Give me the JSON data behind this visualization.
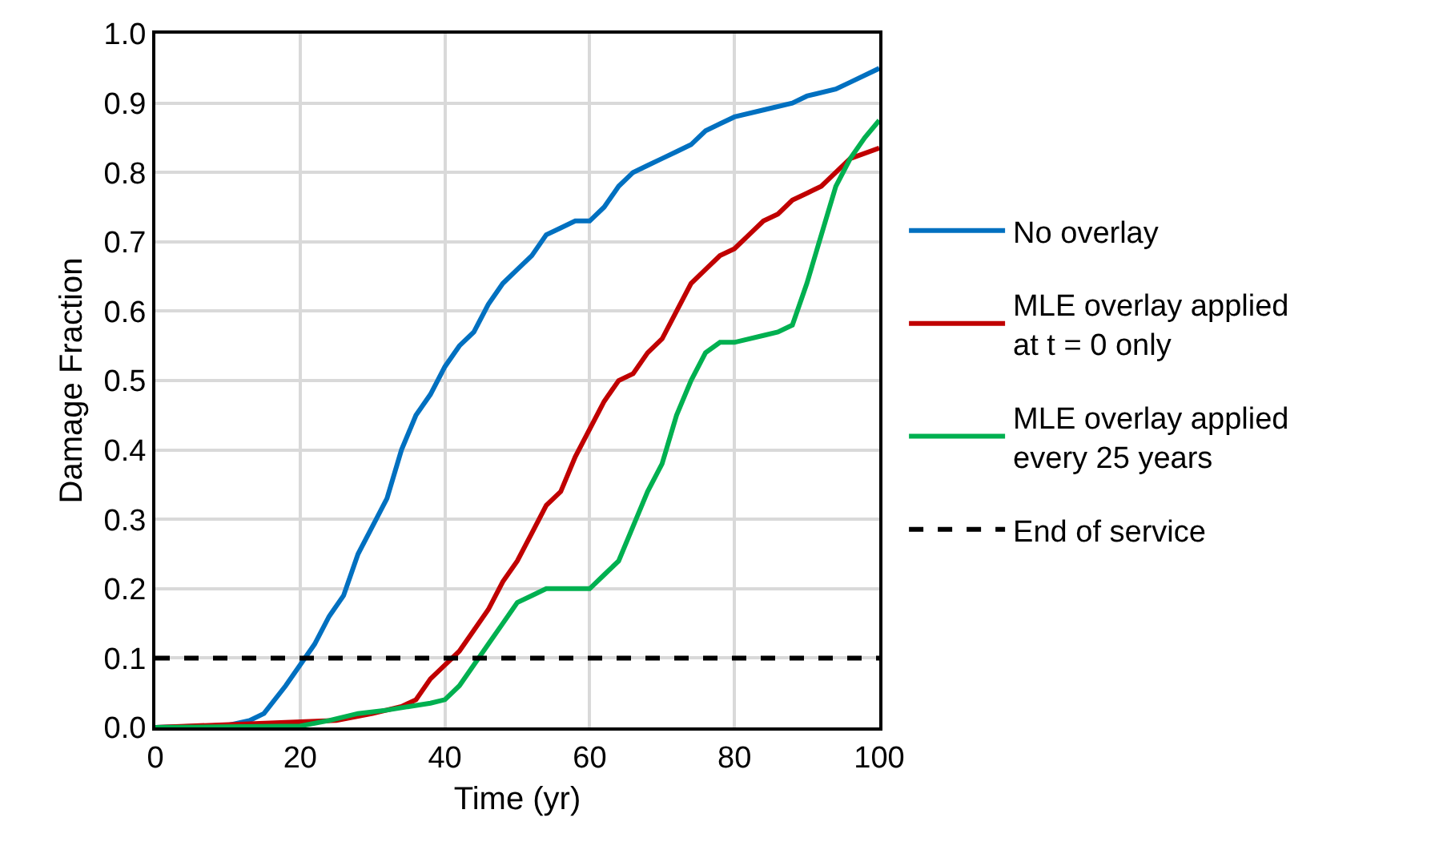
{
  "chart_data": {
    "type": "line",
    "xlabel": "Time (yr)",
    "ylabel": "Damage Fraction",
    "xlim": [
      0,
      100
    ],
    "xticks": [
      0,
      20,
      40,
      60,
      80,
      100
    ],
    "ylim": [
      0,
      1
    ],
    "yticks": [
      {
        "value": 0,
        "label": "0.0"
      },
      0.1,
      0.2,
      0.3,
      0.4,
      0.5,
      0.6,
      0.7,
      0.8,
      0.9,
      {
        "value": 1,
        "label": "1.0"
      }
    ],
    "grid": true,
    "legend": "right",
    "marker": "none",
    "line_style": "solid",
    "series": [
      {
        "name": "No overlay",
        "color": "#0070c0",
        "x": [
          0,
          10,
          13,
          15,
          18,
          20,
          22,
          24,
          26,
          28,
          30,
          32,
          34,
          36,
          38,
          40,
          42,
          44,
          46,
          48,
          50,
          52,
          54,
          56,
          58,
          60,
          62,
          64,
          66,
          68,
          70,
          72,
          74,
          76,
          78,
          80,
          84,
          88,
          90,
          94,
          96,
          100
        ],
        "values": [
          0,
          0.003,
          0.01,
          0.02,
          0.06,
          0.09,
          0.12,
          0.16,
          0.19,
          0.25,
          0.29,
          0.33,
          0.4,
          0.45,
          0.48,
          0.52,
          0.55,
          0.57,
          0.61,
          0.64,
          0.66,
          0.68,
          0.71,
          0.72,
          0.73,
          0.73,
          0.75,
          0.78,
          0.8,
          0.81,
          0.82,
          0.83,
          0.84,
          0.86,
          0.87,
          0.88,
          0.89,
          0.9,
          0.91,
          0.92,
          0.93,
          0.95
        ]
      },
      {
        "name": "MLE overlay applied\nat t = 0 only",
        "color": "#c00000",
        "x": [
          0,
          25,
          30,
          34,
          36,
          38,
          40,
          42,
          44,
          46,
          48,
          50,
          52,
          54,
          56,
          58,
          60,
          62,
          64,
          66,
          68,
          70,
          72,
          74,
          76,
          78,
          80,
          82,
          84,
          86,
          88,
          90,
          92,
          94,
          96,
          100
        ],
        "values": [
          0,
          0.01,
          0.02,
          0.03,
          0.04,
          0.07,
          0.09,
          0.11,
          0.14,
          0.17,
          0.21,
          0.24,
          0.28,
          0.32,
          0.34,
          0.39,
          0.43,
          0.47,
          0.5,
          0.51,
          0.54,
          0.56,
          0.6,
          0.64,
          0.66,
          0.68,
          0.69,
          0.71,
          0.73,
          0.74,
          0.76,
          0.77,
          0.78,
          0.8,
          0.82,
          0.835
        ]
      },
      {
        "name": "MLE overlay applied\nevery 25 years",
        "color": "#00b050",
        "x": [
          0,
          20,
          24,
          28,
          32,
          35,
          38,
          40,
          42,
          44,
          46,
          48,
          50,
          52,
          54,
          56,
          60,
          62,
          64,
          66,
          68,
          70,
          72,
          74,
          76,
          78,
          80,
          84,
          86,
          88,
          90,
          92,
          94,
          96,
          98,
          100
        ],
        "values": [
          0,
          0.002,
          0.01,
          0.02,
          0.025,
          0.03,
          0.035,
          0.04,
          0.06,
          0.09,
          0.12,
          0.15,
          0.18,
          0.19,
          0.2,
          0.2,
          0.2,
          0.22,
          0.24,
          0.29,
          0.34,
          0.38,
          0.45,
          0.5,
          0.54,
          0.555,
          0.555,
          0.565,
          0.57,
          0.58,
          0.64,
          0.71,
          0.78,
          0.82,
          0.85,
          0.875
        ]
      }
    ],
    "ref_lines": [
      {
        "axis": "y",
        "value": 0.1,
        "label": "End of service",
        "color": "#000000",
        "line_style": "dashed"
      }
    ]
  }
}
